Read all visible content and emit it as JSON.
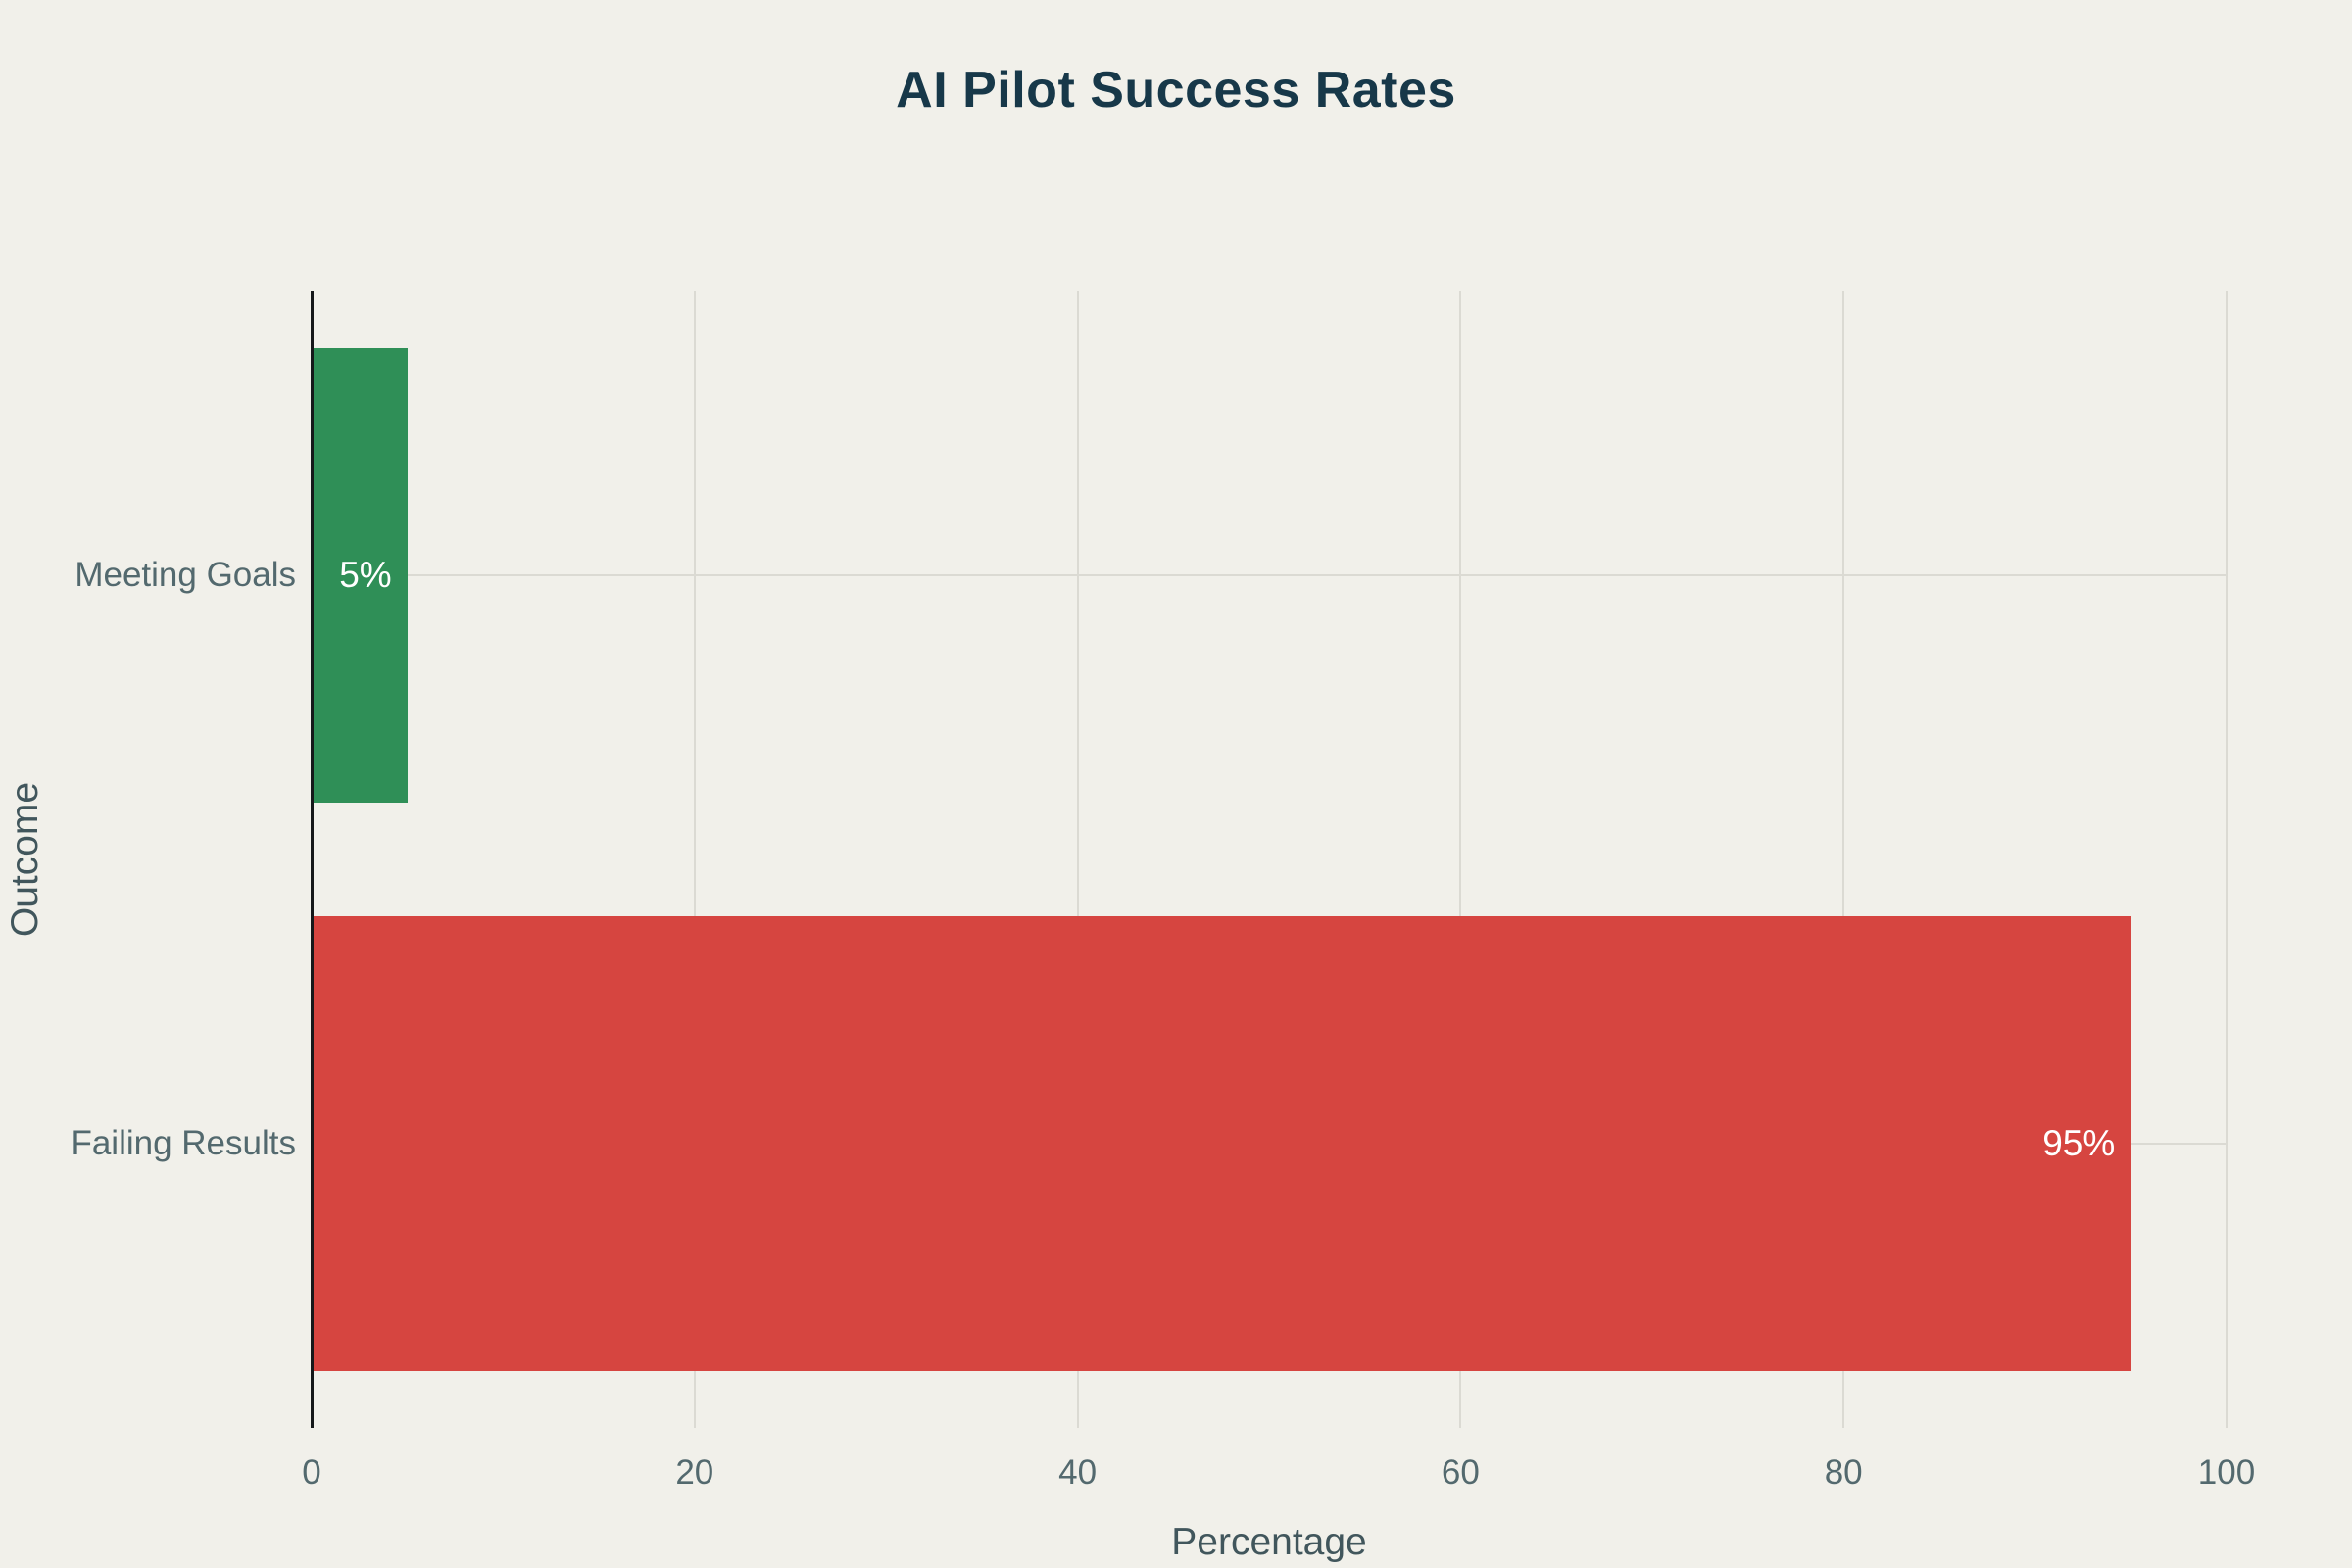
{
  "page": {
    "background_color": "#f1f0ea"
  },
  "chart_data": {
    "type": "bar",
    "orientation": "horizontal",
    "title": "AI Pilot Success Rates",
    "title_color": "#173849",
    "categories": [
      "Meeting Goals",
      "Failing Results"
    ],
    "values": [
      5,
      95
    ],
    "value_labels": [
      "5%",
      "95%"
    ],
    "bar_colors": [
      "#2f8f57",
      "#d64540"
    ],
    "value_label_color": "#ffffff",
    "xlabel": "Percentage",
    "ylabel": "Outcome",
    "xlim": [
      0,
      100
    ],
    "xticks": [
      "0",
      "20",
      "40",
      "60",
      "80",
      "100"
    ],
    "grid": true,
    "grid_color": "#dbdad3",
    "axis_line_color": "#15181a",
    "tick_label_color": "#53696e",
    "axis_title_color": "#41565c",
    "legend": false
  }
}
